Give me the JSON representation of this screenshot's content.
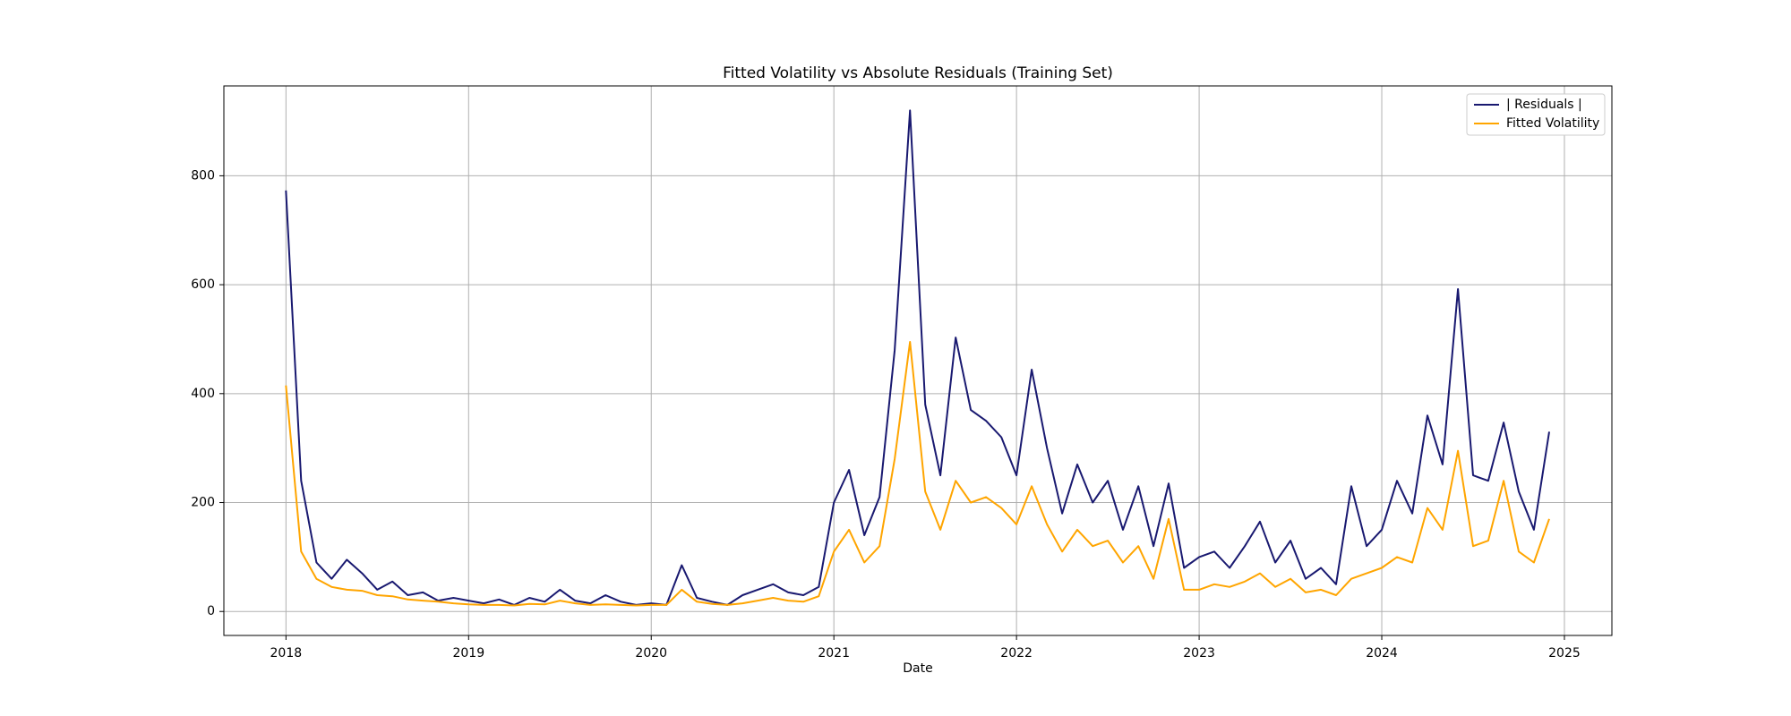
{
  "chart_data": {
    "type": "line",
    "title": "Fitted Volatility vs Absolute Residuals (Training Set)",
    "xlabel": "Date",
    "x": [
      2018,
      2018.083,
      2018.167,
      2018.25,
      2018.333,
      2018.417,
      2018.5,
      2018.583,
      2018.667,
      2018.75,
      2018.833,
      2018.917,
      2019,
      2019.083,
      2019.167,
      2019.25,
      2019.333,
      2019.417,
      2019.5,
      2019.583,
      2019.667,
      2019.75,
      2019.833,
      2019.917,
      2020,
      2020.083,
      2020.167,
      2020.25,
      2020.333,
      2020.417,
      2020.5,
      2020.583,
      2020.667,
      2020.75,
      2020.833,
      2020.917,
      2021,
      2021.083,
      2021.167,
      2021.25,
      2021.333,
      2021.417,
      2021.5,
      2021.583,
      2021.667,
      2021.75,
      2021.833,
      2021.917,
      2022,
      2022.083,
      2022.167,
      2022.25,
      2022.333,
      2022.417,
      2022.5,
      2022.583,
      2022.667,
      2022.75,
      2022.833,
      2022.917,
      2023,
      2023.083,
      2023.167,
      2023.25,
      2023.333,
      2023.417,
      2023.5,
      2023.583,
      2023.667,
      2023.75,
      2023.833,
      2023.917,
      2024,
      2024.083,
      2024.167,
      2024.25,
      2024.333,
      2024.417,
      2024.5,
      2024.583,
      2024.667,
      2024.75,
      2024.833,
      2024.917
    ],
    "series": [
      {
        "name": "| Residuals |",
        "color": "#191970",
        "values": [
          773,
          240,
          90,
          60,
          95,
          70,
          40,
          55,
          30,
          35,
          20,
          25,
          20,
          15,
          22,
          12,
          25,
          18,
          40,
          20,
          15,
          30,
          18,
          12,
          15,
          12,
          85,
          25,
          18,
          12,
          30,
          40,
          50,
          35,
          30,
          45,
          200,
          260,
          140,
          210,
          480,
          920,
          380,
          250,
          503,
          370,
          350,
          320,
          250,
          444,
          300,
          180,
          270,
          200,
          240,
          150,
          230,
          120,
          235,
          80,
          100,
          110,
          80,
          120,
          165,
          90,
          130,
          60,
          80,
          50,
          230,
          120,
          150,
          240,
          180,
          360,
          270,
          592,
          250,
          240,
          347,
          220,
          150,
          330
        ]
      },
      {
        "name": "Fitted Volatility",
        "color": "#ffa500",
        "values": [
          415,
          110,
          60,
          45,
          40,
          38,
          30,
          28,
          22,
          20,
          18,
          15,
          13,
          12,
          12,
          11,
          14,
          13,
          20,
          15,
          12,
          13,
          12,
          11,
          12,
          12,
          40,
          18,
          14,
          12,
          15,
          20,
          25,
          20,
          18,
          28,
          110,
          150,
          90,
          120,
          280,
          495,
          220,
          150,
          240,
          200,
          210,
          190,
          160,
          230,
          160,
          110,
          150,
          120,
          130,
          90,
          120,
          60,
          170,
          40,
          40,
          50,
          45,
          55,
          70,
          45,
          60,
          35,
          40,
          30,
          60,
          70,
          80,
          100,
          90,
          190,
          150,
          295,
          120,
          130,
          240,
          110,
          90,
          170
        ]
      }
    ],
    "xlim": [
      2017.66,
      2025.26
    ],
    "xticks": [
      2018,
      2019,
      2020,
      2021,
      2022,
      2023,
      2024,
      2025
    ],
    "ylim": [
      -44,
      965
    ],
    "yticks": [
      0,
      200,
      400,
      600,
      800
    ],
    "grid": true,
    "legend": "upper right"
  }
}
